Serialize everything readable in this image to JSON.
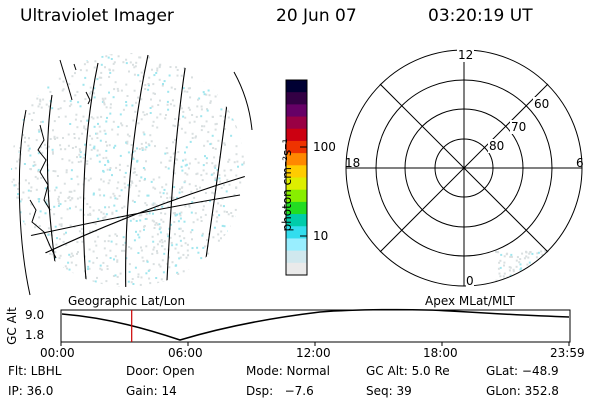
{
  "header": {
    "title": "Ultraviolet Imager",
    "date": "20 Jun 07",
    "time": "03:20:19 UT"
  },
  "colorbar": {
    "unit_label": "photon cm⁻²s⁻¹",
    "ticks": [
      "100",
      "10"
    ],
    "colors": [
      "#000033",
      "#330044",
      "#660066",
      "#990044",
      "#cc0011",
      "#ee3300",
      "#ff8800",
      "#ffcc00",
      "#ddee00",
      "#88ee00",
      "#22dd22",
      "#00ccaa",
      "#33ddee",
      "#99eeff",
      "#d0e8ee",
      "#eaeaea"
    ]
  },
  "polar": {
    "mlt_labels": {
      "top": "12",
      "left": "18",
      "right": "6",
      "bottom": "0"
    },
    "lat_labels": [
      "60",
      "70",
      "80"
    ]
  },
  "map_labels": {
    "left": "Geographic Lat/Lon",
    "right": "Apex MLat/MLT"
  },
  "altitude_plot": {
    "axis_title": "GC Alt",
    "ymax": "9.0",
    "ymin": "1.8",
    "x_ticks": [
      "00:00",
      "06:00",
      "12:00",
      "18:00",
      "23:59"
    ],
    "current_time_hours": 3.34
  },
  "info": {
    "filter": "Flt: LBHL",
    "door": "Door: Open",
    "mode": "Mode: Normal",
    "gc_alt": "GC Alt: 5.0 Re",
    "glat": "GLat: −48.9",
    "ip": "IP: 36.0",
    "gain": "Gain: 14",
    "dsp": "Dsp:   −7.6",
    "seq": "Seq: 39",
    "glon": "GLon: 352.8"
  }
}
